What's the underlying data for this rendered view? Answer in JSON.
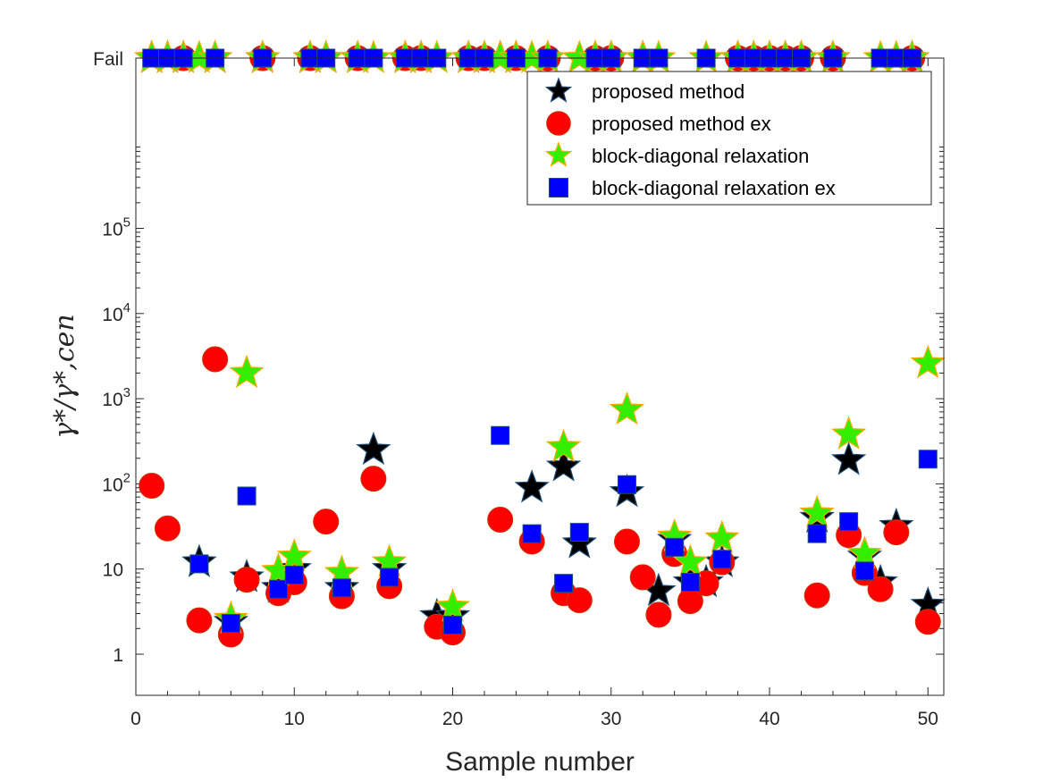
{
  "chart_data": {
    "type": "scatter",
    "title": "",
    "xlabel": "Sample number",
    "ylabel": "γ*/γ*,cen",
    "xlim": [
      0,
      51
    ],
    "y_scale": "log",
    "ylim": [
      0.5,
      8000000
    ],
    "x_ticks": [
      0,
      10,
      20,
      30,
      40,
      50
    ],
    "x_tick_labels": [
      "0",
      "10",
      "20",
      "30",
      "40",
      "50"
    ],
    "y_ticks": [
      1,
      10,
      100,
      1000,
      10000,
      100000
    ],
    "y_tick_labels": [
      "1",
      "10",
      "10²",
      "10³",
      "10⁴",
      "10⁵"
    ],
    "fail_label": "Fail",
    "grid": false,
    "legend_position": "top-right",
    "series": [
      {
        "name": "proposed method",
        "marker": "star",
        "color": "#000000",
        "edge_color": "#1f4e79",
        "points": [
          {
            "x": 1,
            "y": "Fail"
          },
          {
            "x": 2,
            "y": "Fail"
          },
          {
            "x": 3,
            "y": "Fail"
          },
          {
            "x": 4,
            "y": 12
          },
          {
            "x": 5,
            "y": "Fail"
          },
          {
            "x": 6,
            "y": 2.4
          },
          {
            "x": 7,
            "y": 8
          },
          {
            "x": 8,
            "y": "Fail"
          },
          {
            "x": 9,
            "y": 6
          },
          {
            "x": 10,
            "y": 10
          },
          {
            "x": 11,
            "y": "Fail"
          },
          {
            "x": 12,
            "y": "Fail"
          },
          {
            "x": 13,
            "y": 6
          },
          {
            "x": 14,
            "y": "Fail"
          },
          {
            "x": 15,
            "y": 250
          },
          {
            "x": 16,
            "y": 10
          },
          {
            "x": 17,
            "y": "Fail"
          },
          {
            "x": 18,
            "y": "Fail"
          },
          {
            "x": 19,
            "y": 2.8
          },
          {
            "x": 20,
            "y": 2.8
          },
          {
            "x": 21,
            "y": "Fail"
          },
          {
            "x": 22,
            "y": "Fail"
          },
          {
            "x": 23,
            "y": "Fail"
          },
          {
            "x": 24,
            "y": "Fail"
          },
          {
            "x": 25,
            "y": 90
          },
          {
            "x": 26,
            "y": "Fail"
          },
          {
            "x": 27,
            "y": 160
          },
          {
            "x": 28,
            "y": 20
          },
          {
            "x": 29,
            "y": "Fail"
          },
          {
            "x": 30,
            "y": "Fail"
          },
          {
            "x": 31,
            "y": 80
          },
          {
            "x": 32,
            "y": "Fail"
          },
          {
            "x": 33,
            "y": 5.5
          },
          {
            "x": 34,
            "y": 22
          },
          {
            "x": 35,
            "y": 7
          },
          {
            "x": 36,
            "y": 7
          },
          {
            "x": 37,
            "y": 12
          },
          {
            "x": 38,
            "y": "Fail"
          },
          {
            "x": 39,
            "y": "Fail"
          },
          {
            "x": 40,
            "y": "Fail"
          },
          {
            "x": 41,
            "y": "Fail"
          },
          {
            "x": 42,
            "y": "Fail"
          },
          {
            "x": 43,
            "y": 40
          },
          {
            "x": 44,
            "y": "Fail"
          },
          {
            "x": 45,
            "y": 190
          },
          {
            "x": 46,
            "y": 14
          },
          {
            "x": 47,
            "y": 7
          },
          {
            "x": 48,
            "y": 32
          },
          {
            "x": 49,
            "y": "Fail"
          },
          {
            "x": 50,
            "y": 3.8
          }
        ]
      },
      {
        "name": "proposed method ex",
        "marker": "circle",
        "color": "#ff0000",
        "edge_color": "#cc3300",
        "points": [
          {
            "x": 1,
            "y": 95
          },
          {
            "x": 2,
            "y": 30
          },
          {
            "x": 3,
            "y": "Fail"
          },
          {
            "x": 4,
            "y": 2.5
          },
          {
            "x": 5,
            "y": 2900
          },
          {
            "x": 6,
            "y": 1.7
          },
          {
            "x": 7,
            "y": 7.5
          },
          {
            "x": 8,
            "y": "Fail"
          },
          {
            "x": 9,
            "y": 5.2
          },
          {
            "x": 10,
            "y": 7
          },
          {
            "x": 11,
            "y": "Fail"
          },
          {
            "x": 12,
            "y": 36
          },
          {
            "x": 13,
            "y": 4.8
          },
          {
            "x": 14,
            "y": "Fail"
          },
          {
            "x": 15,
            "y": 115
          },
          {
            "x": 16,
            "y": 6.3
          },
          {
            "x": 17,
            "y": "Fail"
          },
          {
            "x": 18,
            "y": "Fail"
          },
          {
            "x": 19,
            "y": 2.1
          },
          {
            "x": 20,
            "y": 1.8
          },
          {
            "x": 21,
            "y": "Fail"
          },
          {
            "x": 22,
            "y": "Fail"
          },
          {
            "x": 23,
            "y": 38
          },
          {
            "x": 24,
            "y": "Fail"
          },
          {
            "x": 25,
            "y": 21
          },
          {
            "x": 26,
            "y": "Fail"
          },
          {
            "x": 27,
            "y": 5.2
          },
          {
            "x": 28,
            "y": 4.3
          },
          {
            "x": 29,
            "y": "Fail"
          },
          {
            "x": 30,
            "y": "Fail"
          },
          {
            "x": 31,
            "y": 21
          },
          {
            "x": 32,
            "y": 8
          },
          {
            "x": 33,
            "y": 2.9
          },
          {
            "x": 34,
            "y": 15
          },
          {
            "x": 35,
            "y": 4.2
          },
          {
            "x": 36,
            "y": 6.8
          },
          {
            "x": 37,
            "y": 12
          },
          {
            "x": 38,
            "y": "Fail"
          },
          {
            "x": 39,
            "y": "Fail"
          },
          {
            "x": 40,
            "y": "Fail"
          },
          {
            "x": 41,
            "y": "Fail"
          },
          {
            "x": 42,
            "y": "Fail"
          },
          {
            "x": 43,
            "y": 4.9
          },
          {
            "x": 44,
            "y": "Fail"
          },
          {
            "x": 45,
            "y": 25
          },
          {
            "x": 46,
            "y": 9
          },
          {
            "x": 47,
            "y": 5.8
          },
          {
            "x": 48,
            "y": 27
          },
          {
            "x": 49,
            "y": "Fail"
          },
          {
            "x": 50,
            "y": 2.4
          }
        ]
      },
      {
        "name": "block-diagonal relaxation",
        "marker": "star",
        "color": "#33ee00",
        "edge_color": "#ffaa00",
        "points": [
          {
            "x": 1,
            "y": "Fail"
          },
          {
            "x": 2,
            "y": "Fail"
          },
          {
            "x": 3,
            "y": "Fail"
          },
          {
            "x": 4,
            "y": "Fail"
          },
          {
            "x": 5,
            "y": "Fail"
          },
          {
            "x": 6,
            "y": 2.6
          },
          {
            "x": 7,
            "y": 2000
          },
          {
            "x": 8,
            "y": "Fail"
          },
          {
            "x": 9,
            "y": 9.5
          },
          {
            "x": 10,
            "y": 14
          },
          {
            "x": 11,
            "y": "Fail"
          },
          {
            "x": 12,
            "y": "Fail"
          },
          {
            "x": 13,
            "y": 9
          },
          {
            "x": 14,
            "y": "Fail"
          },
          {
            "x": 15,
            "y": "Fail"
          },
          {
            "x": 16,
            "y": 12
          },
          {
            "x": 17,
            "y": "Fail"
          },
          {
            "x": 18,
            "y": "Fail"
          },
          {
            "x": 19,
            "y": "Fail"
          },
          {
            "x": 20,
            "y": 3.6
          },
          {
            "x": 21,
            "y": "Fail"
          },
          {
            "x": 22,
            "y": "Fail"
          },
          {
            "x": 23,
            "y": "Fail"
          },
          {
            "x": 24,
            "y": "Fail"
          },
          {
            "x": 25,
            "y": "Fail"
          },
          {
            "x": 26,
            "y": "Fail"
          },
          {
            "x": 27,
            "y": 270
          },
          {
            "x": 28,
            "y": "Fail"
          },
          {
            "x": 29,
            "y": "Fail"
          },
          {
            "x": 30,
            "y": "Fail"
          },
          {
            "x": 31,
            "y": 740
          },
          {
            "x": 32,
            "y": "Fail"
          },
          {
            "x": 33,
            "y": "Fail"
          },
          {
            "x": 34,
            "y": 24
          },
          {
            "x": 35,
            "y": 12
          },
          {
            "x": 36,
            "y": "Fail"
          },
          {
            "x": 37,
            "y": 23
          },
          {
            "x": 38,
            "y": "Fail"
          },
          {
            "x": 39,
            "y": "Fail"
          },
          {
            "x": 40,
            "y": "Fail"
          },
          {
            "x": 41,
            "y": "Fail"
          },
          {
            "x": 42,
            "y": "Fail"
          },
          {
            "x": 43,
            "y": 45
          },
          {
            "x": 44,
            "y": "Fail"
          },
          {
            "x": 45,
            "y": 380
          },
          {
            "x": 46,
            "y": 15
          },
          {
            "x": 47,
            "y": "Fail"
          },
          {
            "x": 48,
            "y": "Fail"
          },
          {
            "x": 49,
            "y": "Fail"
          },
          {
            "x": 50,
            "y": 2600
          }
        ]
      },
      {
        "name": "block-diagonal relaxation ex",
        "marker": "square",
        "color": "#0000ff",
        "edge_color": "#1f4e79",
        "points": [
          {
            "x": 1,
            "y": "Fail"
          },
          {
            "x": 2,
            "y": "Fail"
          },
          {
            "x": 3,
            "y": "Fail"
          },
          {
            "x": 4,
            "y": 11.5
          },
          {
            "x": 5,
            "y": "Fail"
          },
          {
            "x": 6,
            "y": 2.3
          },
          {
            "x": 7,
            "y": 72
          },
          {
            "x": 8,
            "y": "Fail"
          },
          {
            "x": 9,
            "y": 5.8
          },
          {
            "x": 10,
            "y": 8.5
          },
          {
            "x": 11,
            "y": "Fail"
          },
          {
            "x": 12,
            "y": "Fail"
          },
          {
            "x": 13,
            "y": 6
          },
          {
            "x": 14,
            "y": "Fail"
          },
          {
            "x": 15,
            "y": "Fail"
          },
          {
            "x": 16,
            "y": 8
          },
          {
            "x": 17,
            "y": "Fail"
          },
          {
            "x": 18,
            "y": "Fail"
          },
          {
            "x": 19,
            "y": "Fail"
          },
          {
            "x": 20,
            "y": 2.2
          },
          {
            "x": 21,
            "y": "Fail"
          },
          {
            "x": 22,
            "y": "Fail"
          },
          {
            "x": 23,
            "y": 370
          },
          {
            "x": 24,
            "y": "Fail"
          },
          {
            "x": 25,
            "y": 26
          },
          {
            "x": 26,
            "y": "Fail"
          },
          {
            "x": 27,
            "y": 6.8
          },
          {
            "x": 28,
            "y": 27
          },
          {
            "x": 29,
            "y": "Fail"
          },
          {
            "x": 30,
            "y": "Fail"
          },
          {
            "x": 31,
            "y": 98
          },
          {
            "x": 32,
            "y": "Fail"
          },
          {
            "x": 33,
            "y": "Fail"
          },
          {
            "x": 34,
            "y": 18
          },
          {
            "x": 35,
            "y": 7
          },
          {
            "x": 36,
            "y": "Fail"
          },
          {
            "x": 37,
            "y": 13
          },
          {
            "x": 38,
            "y": "Fail"
          },
          {
            "x": 39,
            "y": "Fail"
          },
          {
            "x": 40,
            "y": "Fail"
          },
          {
            "x": 41,
            "y": "Fail"
          },
          {
            "x": 42,
            "y": "Fail"
          },
          {
            "x": 43,
            "y": 26
          },
          {
            "x": 44,
            "y": "Fail"
          },
          {
            "x": 45,
            "y": 36
          },
          {
            "x": 46,
            "y": 9.5
          },
          {
            "x": 47,
            "y": "Fail"
          },
          {
            "x": 48,
            "y": "Fail"
          },
          {
            "x": 49,
            "y": "Fail"
          },
          {
            "x": 50,
            "y": 195
          }
        ]
      }
    ]
  }
}
